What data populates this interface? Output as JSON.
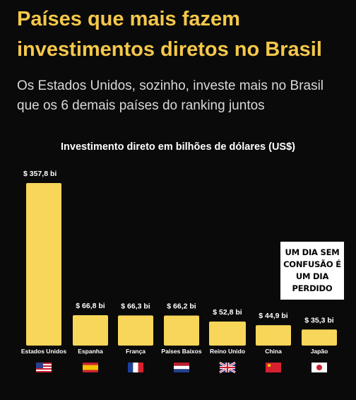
{
  "header": {
    "title": "Países que mais fazem investimentos diretos no Brasil",
    "subtitle": "Os Estados Unidos, sozinho, investe mais no Brasil que os 6 demais países do ranking juntos"
  },
  "chart_data": {
    "type": "bar",
    "title": "Investimento direto em bilhões de dólares (US$)",
    "categories": [
      "Estados Unidos",
      "Espanha",
      "França",
      "Países Baixos",
      "Reino Unido",
      "China",
      "Japão"
    ],
    "values": [
      357.8,
      66.8,
      66.3,
      66.2,
      52.8,
      44.9,
      35.3
    ],
    "data_labels": [
      "$ 357,8 bi",
      "$ 66,8 bi",
      "$ 66,3 bi",
      "$ 66,2 bi",
      "$ 52,8 bi",
      "$ 44,9 bi",
      "$ 35,3 bi"
    ],
    "flags": [
      "flag-usa-icon",
      "flag-spain-icon",
      "flag-france-icon",
      "flag-netherlands-icon",
      "flag-uk-icon",
      "flag-china-icon",
      "flag-japan-icon"
    ],
    "bar_color": "#f7d65a",
    "ylim": [
      0,
      357.8
    ],
    "grid": false
  },
  "overlay": {
    "text": "UM DIA SEM CONFUSÃO É UM DIA PERDIDO"
  },
  "colors": {
    "title": "#f5c84a",
    "background": "#0a0a0a",
    "bar": "#f7d65a"
  }
}
